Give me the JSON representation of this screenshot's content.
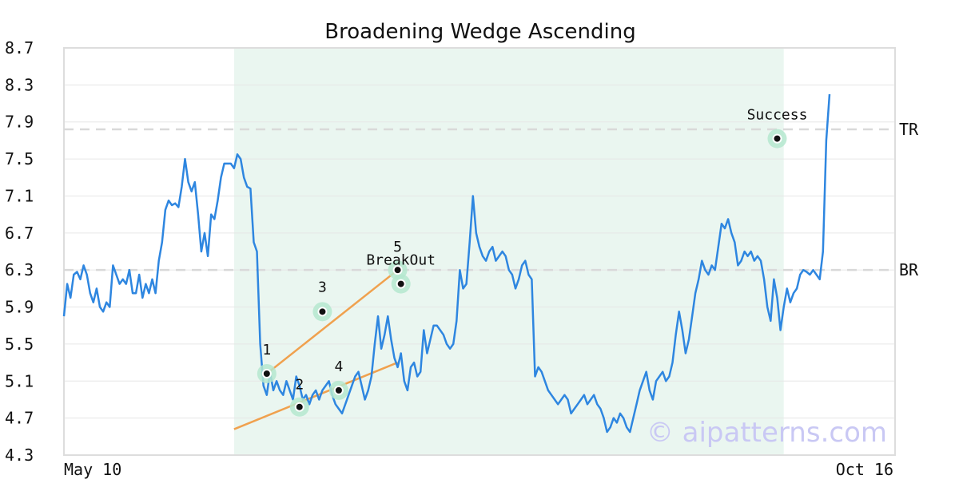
{
  "chart_data": {
    "type": "line",
    "title": "Broadening Wedge Ascending",
    "ylim": [
      4.3,
      8.7
    ],
    "y_ticks": [
      4.3,
      4.7,
      5.1,
      5.5,
      5.9,
      6.3,
      6.7,
      7.1,
      7.5,
      7.9,
      8.3,
      8.7
    ],
    "y_tick_labels": [
      "4.3",
      "4.7",
      "5.1",
      "5.5",
      "5.9",
      "6.3",
      "6.7",
      "7.1",
      "7.5",
      "7.9",
      "8.3",
      "8.7"
    ],
    "x_tick_labels": [
      "May 10",
      "Oct 16"
    ],
    "grid": "horizontal",
    "line_color": "#2e86e0",
    "series": [
      {
        "values": [
          5.8,
          6.15,
          6.0,
          6.25,
          6.28,
          6.2,
          6.35,
          6.25,
          6.05,
          5.95,
          6.1,
          5.9,
          5.85,
          5.95,
          5.9,
          6.35,
          6.25,
          6.15,
          6.2,
          6.15,
          6.3,
          6.05,
          6.05,
          6.25,
          6.0,
          6.15,
          6.05,
          6.2,
          6.05,
          6.4,
          6.6,
          6.95,
          7.05,
          7.0,
          7.02,
          6.98,
          7.2,
          7.5,
          7.25,
          7.15,
          7.25,
          6.9,
          6.5,
          6.7,
          6.45,
          6.9,
          6.85,
          7.05,
          7.3,
          7.45,
          7.45,
          7.45,
          7.4,
          7.55,
          7.5,
          7.3,
          7.2,
          7.18,
          6.6,
          6.5,
          5.5,
          5.05,
          4.95,
          5.2,
          5.0,
          5.1,
          5.0,
          4.95,
          5.1,
          5.0,
          4.9,
          5.15,
          5.05,
          4.9,
          4.95,
          4.85,
          4.95,
          5.0,
          4.9,
          5.0,
          5.05,
          5.1,
          4.95,
          4.85,
          4.8,
          4.75,
          4.85,
          4.95,
          5.05,
          5.15,
          5.2,
          5.05,
          4.9,
          5.0,
          5.15,
          5.5,
          5.8,
          5.45,
          5.6,
          5.8,
          5.55,
          5.35,
          5.25,
          5.4,
          5.1,
          5.0,
          5.25,
          5.3,
          5.15,
          5.2,
          5.65,
          5.4,
          5.55,
          5.7,
          5.7,
          5.65,
          5.6,
          5.5,
          5.45,
          5.5,
          5.75,
          6.3,
          6.1,
          6.15,
          6.6,
          7.1,
          6.7,
          6.55,
          6.45,
          6.4,
          6.5,
          6.55,
          6.4,
          6.45,
          6.5,
          6.45,
          6.3,
          6.25,
          6.1,
          6.2,
          6.35,
          6.4,
          6.25,
          6.2,
          5.15,
          5.25,
          5.2,
          5.1,
          5.0,
          4.95,
          4.9,
          4.85,
          4.9,
          4.95,
          4.9,
          4.75,
          4.8,
          4.85,
          4.9,
          4.95,
          4.85,
          4.9,
          4.95,
          4.85,
          4.8,
          4.7,
          4.55,
          4.6,
          4.7,
          4.65,
          4.75,
          4.7,
          4.6,
          4.55,
          4.7,
          4.85,
          5.0,
          5.1,
          5.2,
          5.0,
          4.9,
          5.1,
          5.15,
          5.2,
          5.1,
          5.15,
          5.3,
          5.6,
          5.85,
          5.65,
          5.4,
          5.55,
          5.8,
          6.05,
          6.2,
          6.4,
          6.3,
          6.25,
          6.35,
          6.3,
          6.55,
          6.8,
          6.75,
          6.85,
          6.7,
          6.6,
          6.35,
          6.4,
          6.5,
          6.45,
          6.5,
          6.4,
          6.45,
          6.4,
          6.2,
          5.9,
          5.75,
          6.2,
          6.0,
          5.65,
          5.9,
          6.1,
          5.95,
          6.05,
          6.1,
          6.25,
          6.3,
          6.28,
          6.25,
          6.3,
          6.25,
          6.2,
          6.5,
          7.7,
          8.2
        ],
        "markers": [
          {
            "index": 62,
            "value": 5.18,
            "label": "1"
          },
          {
            "index": 72,
            "value": 4.82,
            "label": "2"
          },
          {
            "index": 79,
            "value": 5.85,
            "label": "3"
          },
          {
            "index": 84,
            "value": 5.0,
            "label": "4"
          },
          {
            "index": 102,
            "value": 6.3,
            "label": "5"
          },
          {
            "index": 103,
            "value": 6.15,
            "label": "BreakOut"
          },
          {
            "index": 218,
            "value": 7.72,
            "label": "Success"
          }
        ]
      }
    ],
    "trendlines": [
      {
        "color": "#f0a14e",
        "from": {
          "index": 62,
          "value": 5.18
        },
        "to": {
          "index": 102,
          "value": 6.3
        }
      },
      {
        "color": "#f0a14e",
        "from": {
          "index": 52,
          "value": 4.58
        },
        "to": {
          "index": 102,
          "value": 5.3
        }
      }
    ],
    "levels": [
      {
        "label": "TR",
        "value": 7.82
      },
      {
        "label": "BR",
        "value": 6.3
      }
    ],
    "highlight_region": {
      "from_index": 52,
      "to_index": 220,
      "color": "#eaf6f0"
    },
    "marker_halo_color": "#b5e8cf"
  },
  "watermark": "© aipatterns.com"
}
